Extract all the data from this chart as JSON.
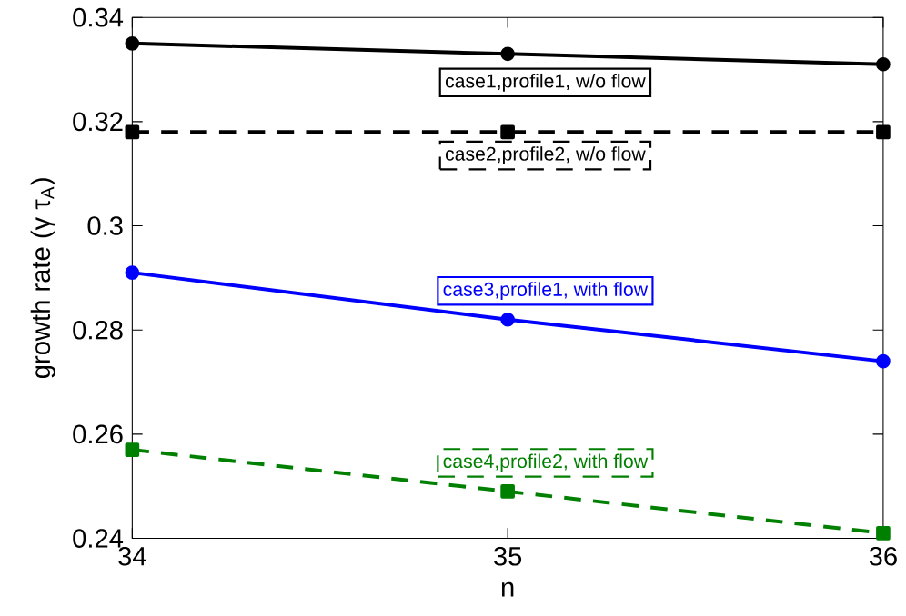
{
  "chart_data": {
    "type": "line",
    "xlabel": "n",
    "ylabel": "growth rate (γ τ$_{A}$)",
    "x": [
      34,
      35,
      36
    ],
    "xlim": [
      34,
      36
    ],
    "xticks": [
      34,
      35,
      36
    ],
    "ylim": [
      0.24,
      0.34
    ],
    "yticks": [
      0.24,
      0.26,
      0.28,
      {
        "value": 0.3,
        "label": "0.3"
      },
      0.32,
      0.34
    ],
    "grid": false,
    "legend": false,
    "series": [
      {
        "name": "case1,profile1, w/o flow",
        "color": "#000000",
        "values": [
          0.335,
          0.333,
          0.331
        ],
        "marker": "circle",
        "line_style": "solid"
      },
      {
        "name": "case2,profile2, w/o flow",
        "color": "#000000",
        "values": [
          0.318,
          0.318,
          0.318
        ],
        "marker": "square",
        "line_style": "dashed"
      },
      {
        "name": "case3,profile1, with flow",
        "color": "#0000ff",
        "values": [
          0.291,
          0.282,
          0.274
        ],
        "marker": "circle",
        "line_style": "solid"
      },
      {
        "name": "case4,profile2, with flow",
        "color": "#008000",
        "values": [
          0.257,
          0.249,
          0.241
        ],
        "marker": "square",
        "line_style": "dashed"
      }
    ]
  }
}
